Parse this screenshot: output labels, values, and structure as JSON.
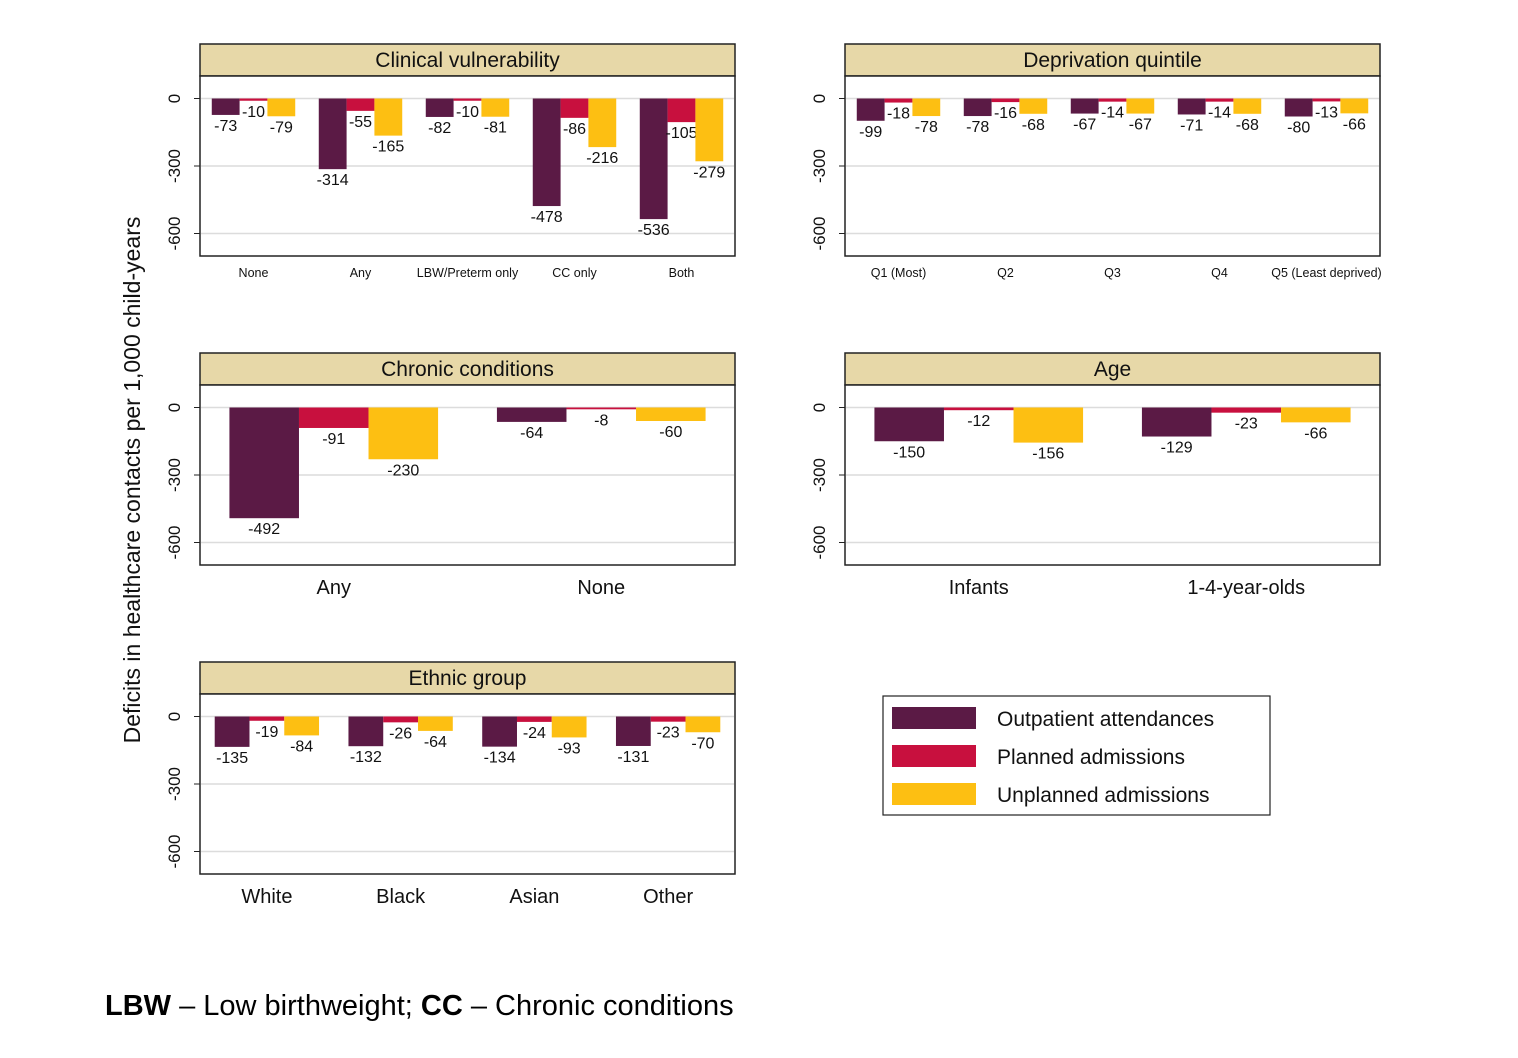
{
  "chart_data": {
    "type": "bar",
    "ylabel": "Deficits in healthcare contacts per 1,000 child-years",
    "ylim": [
      -700,
      100
    ],
    "yticks": [
      0,
      -300,
      -600
    ],
    "grid": true,
    "legend": {
      "placement": "bottom-right",
      "entries": [
        "Outpatient attendances",
        "Planned admissions",
        "Unplanned admissions"
      ]
    },
    "colors": {
      "Outpatient attendances": "#5b1a45",
      "Planned admissions": "#c8103e",
      "Unplanned admissions": "#fdbf12",
      "header": "#e7d8a8"
    },
    "panels": [
      {
        "title": "Clinical vulnerability",
        "categories": [
          "None",
          "Any",
          "LBW/Preterm only",
          "CC only",
          "Both"
        ],
        "series": [
          {
            "name": "Outpatient attendances",
            "values": [
              -73,
              -314,
              -82,
              -478,
              -536
            ]
          },
          {
            "name": "Planned admissions",
            "values": [
              -10,
              -55,
              -10,
              -86,
              -105
            ]
          },
          {
            "name": "Unplanned admissions",
            "values": [
              -79,
              -165,
              -81,
              -216,
              -279
            ]
          }
        ]
      },
      {
        "title": "Deprivation quintile",
        "categories": [
          "Q1 (Most)",
          "Q2",
          "Q3",
          "Q4",
          "Q5 (Least deprived)"
        ],
        "series": [
          {
            "name": "Outpatient attendances",
            "values": [
              -99,
              -78,
              -67,
              -71,
              -80
            ]
          },
          {
            "name": "Planned admissions",
            "values": [
              -18,
              -16,
              -14,
              -14,
              -13
            ]
          },
          {
            "name": "Unplanned admissions",
            "values": [
              -78,
              -68,
              -67,
              -68,
              -66
            ]
          }
        ]
      },
      {
        "title": "Chronic conditions",
        "categories": [
          "Any",
          "None"
        ],
        "series": [
          {
            "name": "Outpatient attendances",
            "values": [
              -492,
              -64
            ]
          },
          {
            "name": "Planned admissions",
            "values": [
              -91,
              -8
            ]
          },
          {
            "name": "Unplanned admissions",
            "values": [
              -230,
              -60
            ]
          }
        ]
      },
      {
        "title": "Age",
        "categories": [
          "Infants",
          "1-4-year-olds"
        ],
        "series": [
          {
            "name": "Outpatient attendances",
            "values": [
              -150,
              -129
            ]
          },
          {
            "name": "Planned admissions",
            "values": [
              -12,
              -23
            ]
          },
          {
            "name": "Unplanned admissions",
            "values": [
              -156,
              -66
            ]
          }
        ]
      },
      {
        "title": "Ethnic group",
        "categories": [
          "White",
          "Black",
          "Asian",
          "Other"
        ],
        "series": [
          {
            "name": "Outpatient attendances",
            "values": [
              -135,
              -132,
              -134,
              -131
            ]
          },
          {
            "name": "Planned admissions",
            "values": [
              -19,
              -26,
              -24,
              -23
            ]
          },
          {
            "name": "Unplanned admissions",
            "values": [
              -84,
              -64,
              -93,
              -70
            ]
          }
        ]
      }
    ]
  },
  "footnote": {
    "abbr1": "LBW",
    "def1": " – Low birthweight; ",
    "abbr2": "CC",
    "def2": " – Chronic conditions"
  }
}
